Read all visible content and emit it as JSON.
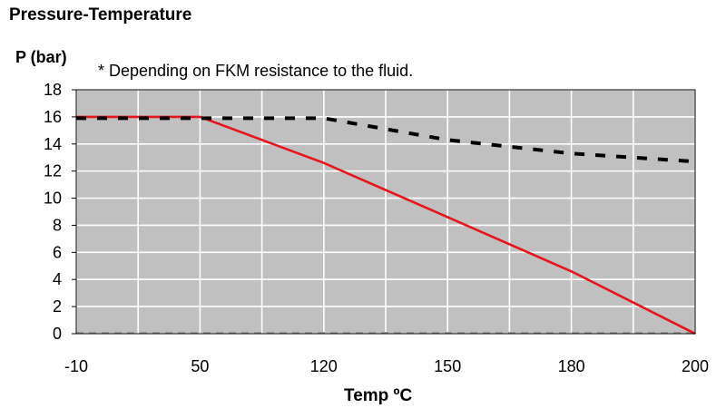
{
  "chart_data": {
    "type": "line",
    "title": "Pressure-Temperature",
    "ylabel": "P (bar)",
    "xlabel": "Temp ºC",
    "annotation": "* Depending on FKM  resistance to the fluid.",
    "x_tick_labels": [
      "-10",
      "50",
      "120",
      "150",
      "180",
      "200"
    ],
    "y_ticks": [
      0,
      2,
      4,
      6,
      8,
      10,
      12,
      14,
      16,
      18
    ],
    "ylim": [
      0,
      18
    ],
    "grid": true,
    "legend": "none",
    "colors": {
      "plot_background": "#c0c0c0",
      "grid": "#ffffff",
      "solid_series": "#e8141c",
      "dashed_series": "#000000"
    },
    "series": [
      {
        "style": "solid",
        "color": "#e8141c",
        "points": [
          [
            "-10",
            16
          ],
          [
            "50",
            16
          ],
          [
            "120",
            12.6
          ],
          [
            "150",
            8.6
          ],
          [
            "180",
            4.6
          ],
          [
            "200",
            0
          ]
        ]
      },
      {
        "style": "dashed",
        "color": "#000000",
        "points": [
          [
            "-10",
            15.9
          ],
          [
            "50",
            15.9
          ],
          [
            "120",
            15.9
          ],
          [
            "150",
            14.3
          ],
          [
            "180",
            13.3
          ],
          [
            "200",
            12.7
          ]
        ]
      }
    ]
  }
}
